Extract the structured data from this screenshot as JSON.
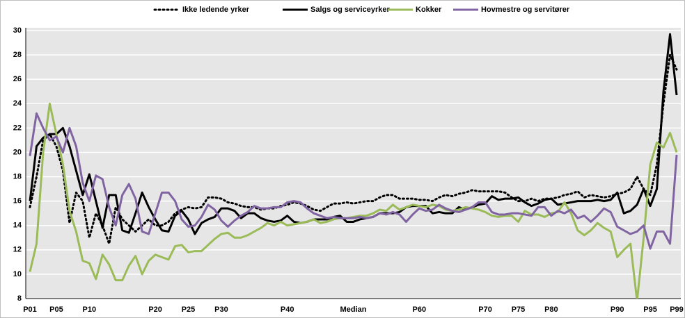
{
  "chart_data": {
    "type": "line",
    "categories": [
      "P01",
      null,
      null,
      null,
      "P05",
      null,
      null,
      null,
      null,
      "P10",
      null,
      null,
      null,
      null,
      null,
      null,
      null,
      null,
      null,
      "P20",
      null,
      null,
      null,
      null,
      "P25",
      null,
      null,
      null,
      null,
      "P30",
      null,
      null,
      null,
      null,
      null,
      null,
      null,
      null,
      null,
      "P40",
      null,
      null,
      null,
      null,
      null,
      null,
      null,
      null,
      null,
      "Median",
      null,
      null,
      null,
      null,
      null,
      null,
      null,
      null,
      null,
      "P60",
      null,
      null,
      null,
      null,
      null,
      null,
      null,
      null,
      null,
      "P70",
      null,
      null,
      null,
      null,
      "P75",
      null,
      null,
      null,
      null,
      "P80",
      null,
      null,
      null,
      null,
      null,
      null,
      null,
      null,
      null,
      "P90",
      null,
      null,
      null,
      null,
      "P95",
      null,
      null,
      null,
      "P99"
    ],
    "series": [
      {
        "name": "Ikke ledende yrker",
        "color": "#000000",
        "dash": "dotted",
        "values": [
          15.5,
          18,
          21,
          21.5,
          20.5,
          18.5,
          14.2,
          16.7,
          16,
          13,
          15,
          14,
          12.5,
          15.5,
          14.5,
          14,
          13.5,
          14,
          14.5,
          14,
          14,
          14.3,
          15,
          15.3,
          15.5,
          15.4,
          15.5,
          16.3,
          16.3,
          16.2,
          15.9,
          15.8,
          15.6,
          15.5,
          15.5,
          15.3,
          15.4,
          15.4,
          15.6,
          15.7,
          15.9,
          15.8,
          15.6,
          15.3,
          15.2,
          15.5,
          15.8,
          15.8,
          15.9,
          15.8,
          15.9,
          16,
          16,
          16.3,
          16.5,
          16.5,
          16.2,
          16.2,
          16.2,
          16.1,
          16.1,
          16,
          16.3,
          16.5,
          16.4,
          16.6,
          16.7,
          16.9,
          16.8,
          16.8,
          16.8,
          16.8,
          16.7,
          16.3,
          16,
          16,
          16.2,
          16,
          16.2,
          16.2,
          16.3,
          16.5,
          16.6,
          16.8,
          16.3,
          16.5,
          16.4,
          16.3,
          16.4,
          16.6,
          16.7,
          17,
          18,
          17,
          16.5,
          19,
          24,
          28,
          26.8
        ]
      },
      {
        "name": "Salgs og serviceyrker",
        "color": "#000000",
        "dash": "solid",
        "values": [
          16,
          20.5,
          21.2,
          21.5,
          21.5,
          22,
          20.5,
          18.5,
          16.5,
          18.2,
          16,
          13.8,
          16.5,
          16.5,
          13.6,
          13.4,
          15,
          16.7,
          15.5,
          14.5,
          13.6,
          13.5,
          14.8,
          15.2,
          14.5,
          13.3,
          14.2,
          14.5,
          14.7,
          15.4,
          15.4,
          15.2,
          14.6,
          15,
          15,
          14.6,
          14.4,
          14.3,
          14.4,
          14.8,
          14.3,
          14.2,
          14.3,
          14.5,
          14.5,
          14.5,
          14.7,
          14.8,
          14.3,
          14.3,
          14.5,
          14.6,
          14.7,
          15,
          15,
          15,
          15.1,
          15.5,
          15.6,
          15.6,
          15.6,
          15,
          15.1,
          15,
          15,
          15.5,
          15.3,
          15.5,
          15.7,
          15.8,
          16.4,
          16.1,
          16.2,
          16.2,
          16.3,
          15.9,
          15.6,
          15.8,
          16.1,
          16.2,
          15.7,
          15.8,
          15.9,
          16,
          16,
          16,
          16.1,
          16,
          16.1,
          16.7,
          15,
          15.2,
          15.7,
          17,
          15.6,
          17,
          25,
          29.7,
          24.7
        ]
      },
      {
        "name": "Kokker",
        "color": "#9bbb59",
        "dash": "solid",
        "values": [
          10.2,
          12.5,
          20,
          24,
          21.5,
          19,
          15.2,
          13.5,
          11.1,
          10.9,
          9.6,
          11.6,
          10.8,
          9.5,
          9.5,
          10.7,
          11.5,
          10,
          11.1,
          11.6,
          11.4,
          11.2,
          12.3,
          12.4,
          11.8,
          11.9,
          11.9,
          12.4,
          12.9,
          13.3,
          13.4,
          13,
          13,
          13.2,
          13.5,
          13.8,
          14.2,
          14,
          14.3,
          14,
          14.1,
          14.2,
          14.3,
          14.5,
          14.2,
          14.3,
          14.5,
          14.6,
          14.6,
          14.7,
          14.8,
          14.8,
          15,
          15.3,
          15.2,
          15.7,
          15.3,
          15.5,
          15.7,
          15.6,
          15.5,
          15.7,
          15.6,
          15.3,
          15.2,
          15.3,
          15.5,
          15.4,
          15.3,
          15.1,
          14.8,
          14.7,
          14.8,
          14.8,
          14.3,
          15.2,
          14.9,
          14.9,
          14.7,
          15,
          15.1,
          15.9,
          15,
          13.6,
          13.2,
          13.6,
          14.2,
          13.8,
          13.5,
          11.4,
          12,
          12.5,
          7.8,
          13,
          19,
          20.8,
          20.4,
          21.6,
          20
        ]
      },
      {
        "name": "Hovmestre og servitører",
        "color": "#8064a2",
        "dash": "solid",
        "values": [
          19.7,
          23.2,
          22,
          21,
          21.3,
          20,
          22,
          20.5,
          17.5,
          16,
          18.1,
          17.8,
          15.5,
          14,
          16.5,
          17.4,
          16.2,
          13.5,
          13.3,
          15,
          16.7,
          16.7,
          16,
          14.5,
          13.9,
          14,
          14.7,
          15.7,
          15.3,
          14.4,
          13.9,
          14.4,
          14.8,
          15.1,
          15.6,
          15.4,
          15.4,
          15.5,
          15.5,
          15.9,
          16,
          15.9,
          15.4,
          15,
          14.8,
          14.6,
          14.7,
          14.6,
          14.6,
          14.6,
          14.7,
          14.6,
          14.7,
          15,
          14.9,
          15.1,
          14.9,
          14.3,
          14.9,
          15.4,
          15.2,
          15.3,
          15.7,
          15.4,
          15.2,
          15.1,
          15.3,
          15.5,
          15.9,
          15.9,
          15.1,
          14.9,
          14.9,
          15,
          15,
          14.9,
          14.8,
          15.5,
          15.5,
          14.8,
          15.2,
          15,
          15.3,
          14.6,
          14.8,
          14.3,
          14.8,
          15.4,
          15.1,
          13.9,
          13.6,
          13.3,
          13.5,
          14,
          12.1,
          13.5,
          13.5,
          12.5,
          19.8
        ]
      }
    ],
    "ylim": [
      8,
      30
    ],
    "yticks": [
      8,
      10,
      12,
      14,
      16,
      18,
      20,
      22,
      24,
      26,
      28,
      30
    ],
    "grid": true,
    "legend": "top"
  }
}
